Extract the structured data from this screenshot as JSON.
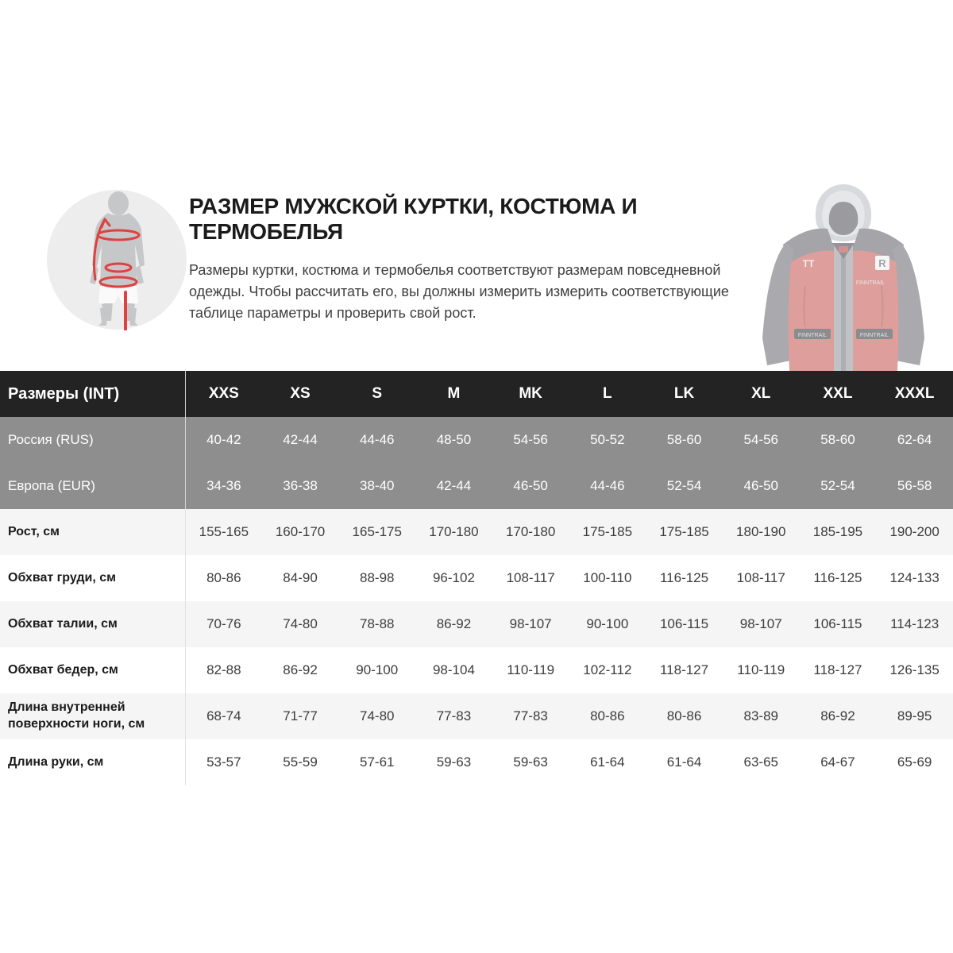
{
  "header": {
    "title": "РАЗМЕР МУЖСКОЙ КУРТКИ, КОСТЮМА И ТЕРМОБЕЛЬЯ",
    "description": "Размеры куртки, костюма и термобелья соответствуют размерам повседневной одежды. Чтобы рассчитать его, вы должны измерить измерить соответствующие таблице параметры и проверить свой рост.",
    "icon_name": "body-measurement-icon",
    "jacket_image_name": "red-black-hooded-jacket-photo"
  },
  "colors": {
    "accent_red": "#e04040",
    "table_header_bg": "#232323",
    "size_row_bg": "#8e8e8e",
    "stripe_bg": "#f5f5f5",
    "divider": "#cfcfcf",
    "silhouette_gray": "#c5c7c8",
    "icon_circle_bg": "#ededed"
  },
  "chart_data": {
    "type": "table",
    "title": "Размер мужской куртки, костюма и термобелья",
    "columns": [
      "Размеры (INT)",
      "XXS",
      "XS",
      "S",
      "M",
      "MK",
      "L",
      "LK",
      "XL",
      "XXL",
      "XXXL"
    ],
    "rows": [
      {
        "label": "Россия (RUS)",
        "style": "gray",
        "values": [
          "40-42",
          "42-44",
          "44-46",
          "48-50",
          "54-56",
          "50-52",
          "58-60",
          "54-56",
          "58-60",
          "62-64"
        ]
      },
      {
        "label": "Европа (EUR)",
        "style": "gray",
        "values": [
          "34-36",
          "36-38",
          "38-40",
          "42-44",
          "46-50",
          "44-46",
          "52-54",
          "46-50",
          "52-54",
          "56-58"
        ]
      },
      {
        "label": "Рост, см",
        "style": "light",
        "values": [
          "155-165",
          "160-170",
          "165-175",
          "170-180",
          "170-180",
          "175-185",
          "175-185",
          "180-190",
          "185-195",
          "190-200"
        ]
      },
      {
        "label": "Обхват груди, см",
        "style": "white",
        "values": [
          "80-86",
          "84-90",
          "88-98",
          "96-102",
          "108-117",
          "100-110",
          "116-125",
          "108-117",
          "116-125",
          "124-133"
        ]
      },
      {
        "label": "Обхват талии, см",
        "style": "light",
        "values": [
          "70-76",
          "74-80",
          "78-88",
          "86-92",
          "98-107",
          "90-100",
          "106-115",
          "98-107",
          "106-115",
          "114-123"
        ]
      },
      {
        "label": "Обхват бедер, см",
        "style": "white",
        "values": [
          "82-88",
          "86-92",
          "90-100",
          "98-104",
          "110-119",
          "102-112",
          "118-127",
          "110-119",
          "118-127",
          "126-135"
        ]
      },
      {
        "label": "Длина внутренней поверхности ноги, см",
        "style": "light",
        "values": [
          "68-74",
          "71-77",
          "74-80",
          "77-83",
          "77-83",
          "80-86",
          "80-86",
          "83-89",
          "86-92",
          "89-95"
        ]
      },
      {
        "label": "Длина руки, см",
        "style": "white",
        "values": [
          "53-57",
          "55-59",
          "57-61",
          "59-63",
          "59-63",
          "61-64",
          "61-64",
          "63-65",
          "64-67",
          "65-69"
        ]
      }
    ]
  }
}
